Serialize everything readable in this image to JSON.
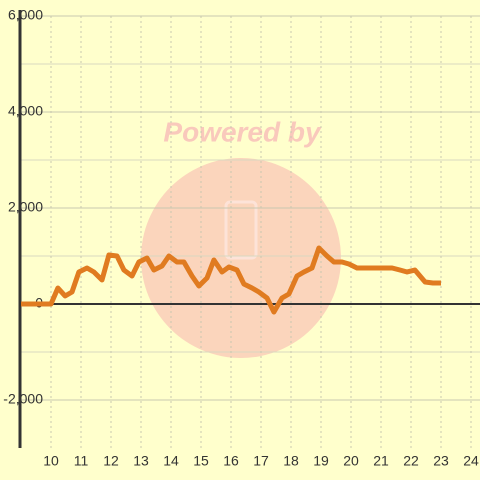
{
  "chart_data": {
    "type": "line",
    "watermark": "Powered by",
    "x": [
      9,
      10,
      10.23,
      10.47,
      10.7,
      10.93,
      11.2,
      11.43,
      11.7,
      11.93,
      12.2,
      12.43,
      12.7,
      12.93,
      13.2,
      13.43,
      13.7,
      13.93,
      14.2,
      14.43,
      14.7,
      14.93,
      15.2,
      15.43,
      15.7,
      15.93,
      16.2,
      16.43,
      16.7,
      16.93,
      17.2,
      17.43,
      17.7,
      17.93,
      18.2,
      18.43,
      18.7,
      18.93,
      19.2,
      19.43,
      19.7,
      19.93,
      20.2,
      20.7,
      21.37,
      21.63,
      21.87,
      22.13,
      22.47,
      22.73,
      23
    ],
    "series": [
      {
        "color": "#e07b20",
        "values": [
          0,
          0,
          333,
          167,
          250,
          667,
          750,
          667,
          500,
          1020,
          1000,
          708,
          583,
          875,
          958,
          708,
          792,
          1000,
          875,
          875,
          583,
          375,
          542,
          917,
          667,
          771,
          708,
          417,
          333,
          250,
          125,
          -167,
          125,
          208,
          583,
          667,
          750,
          1167,
          1000,
          875,
          875,
          833,
          750,
          750,
          750,
          708,
          667,
          708,
          458,
          438,
          438
        ]
      }
    ],
    "xlim": [
      9,
      24.3
    ],
    "xticks": [
      10,
      11,
      12,
      13,
      14,
      15,
      16,
      17,
      18,
      19,
      20,
      21,
      22,
      23,
      24
    ],
    "ylim": [
      -3000,
      6000
    ],
    "yticks": [
      {
        "value": -2000,
        "label": "-2,000"
      },
      0,
      {
        "value": 2000,
        "label": "2,000"
      },
      {
        "value": 4000,
        "label": "4,000"
      },
      {
        "value": 6000,
        "label": "6,000"
      }
    ],
    "yminorticks": [
      -1000,
      1000,
      3000,
      5000
    ],
    "grid": true
  }
}
